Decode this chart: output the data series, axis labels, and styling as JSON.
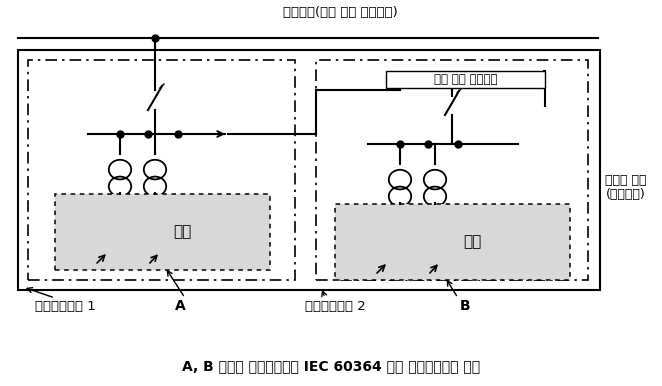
{
  "title_top": "전력계통(고압 또는 특별고압)",
  "title_bottom": "A, B 각각의 수용장소별로 IEC 60364 또는 기존기준으로 시설",
  "label_left": "전기사용장소 1",
  "label_left_A": "A",
  "label_right": "전기사용장소 2",
  "label_right_B": "B",
  "label_low_voltage_left": "저압",
  "label_low_voltage_right": "저압",
  "label_high_voltage": "고압 또는 특별고압",
  "label_side_line1": "수용가 구내",
  "label_side_line2": "(수용장소)",
  "bg_color": "#ffffff",
  "line_color": "#000000"
}
